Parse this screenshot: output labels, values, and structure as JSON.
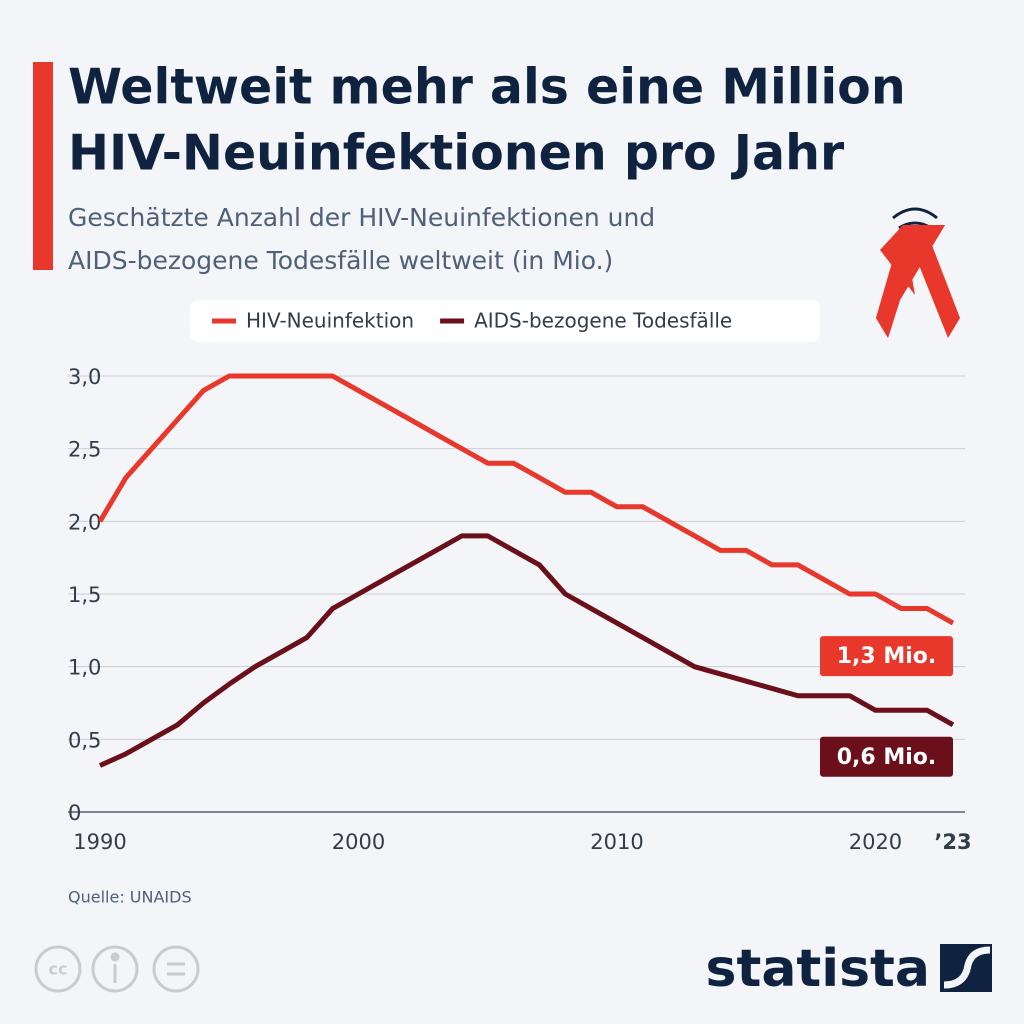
{
  "chart_data": {
    "type": "line",
    "title": [
      "Weltweit mehr als eine Million",
      "HIV-Neuinfektionen pro Jahr"
    ],
    "subtitle": [
      "Geschätzte Anzahl der HIV-Neuinfektionen und",
      "AIDS-bezogene Todesfälle weltweit (in Mio.)"
    ],
    "x": [
      1990,
      1991,
      1992,
      1993,
      1994,
      1995,
      1996,
      1997,
      1998,
      1999,
      2000,
      2001,
      2002,
      2003,
      2004,
      2005,
      2006,
      2007,
      2008,
      2009,
      2010,
      2011,
      2012,
      2013,
      2014,
      2015,
      2016,
      2017,
      2018,
      2019,
      2020,
      2021,
      2022,
      2023
    ],
    "series": [
      {
        "name": "HIV-Neuinfektion",
        "color": "#e8382b",
        "end_label": "1,3 Mio.",
        "values": [
          2.0,
          2.3,
          2.5,
          2.7,
          2.9,
          3.0,
          3.0,
          3.0,
          3.0,
          3.0,
          2.9,
          2.8,
          2.7,
          2.6,
          2.5,
          2.4,
          2.4,
          2.3,
          2.2,
          2.2,
          2.1,
          2.1,
          2.0,
          1.9,
          1.8,
          1.8,
          1.7,
          1.7,
          1.6,
          1.5,
          1.5,
          1.4,
          1.4,
          1.3
        ]
      },
      {
        "name": "AIDS-bezogene Todesfälle",
        "color": "#6b0f1a",
        "end_label": "0,6 Mio.",
        "values": [
          0.32,
          0.4,
          0.5,
          0.6,
          0.75,
          0.88,
          1.0,
          1.1,
          1.2,
          1.4,
          1.5,
          1.6,
          1.7,
          1.8,
          1.9,
          1.9,
          1.8,
          1.7,
          1.5,
          1.4,
          1.3,
          1.2,
          1.1,
          1.0,
          0.95,
          0.9,
          0.85,
          0.8,
          0.8,
          0.8,
          0.7,
          0.7,
          0.7,
          0.6
        ]
      }
    ],
    "xlim": [
      1990,
      2023
    ],
    "xticks": [
      1990,
      2000,
      2010,
      2020,
      {
        "value": 2023,
        "label": "’23"
      }
    ],
    "ylim": [
      0,
      3
    ],
    "yticks": [
      0,
      {
        "value": 0.5,
        "label": "0,5"
      },
      {
        "value": 1,
        "label": "1,0"
      },
      {
        "value": 1.5,
        "label": "1,5"
      },
      {
        "value": 2,
        "label": "2,0"
      },
      {
        "value": 2.5,
        "label": "2,5"
      },
      {
        "value": 3,
        "label": "3,0"
      }
    ],
    "grid": true,
    "legend": "top",
    "source": "Quelle: UNAIDS"
  },
  "footer": {
    "license": "cc",
    "brand": "statista"
  }
}
